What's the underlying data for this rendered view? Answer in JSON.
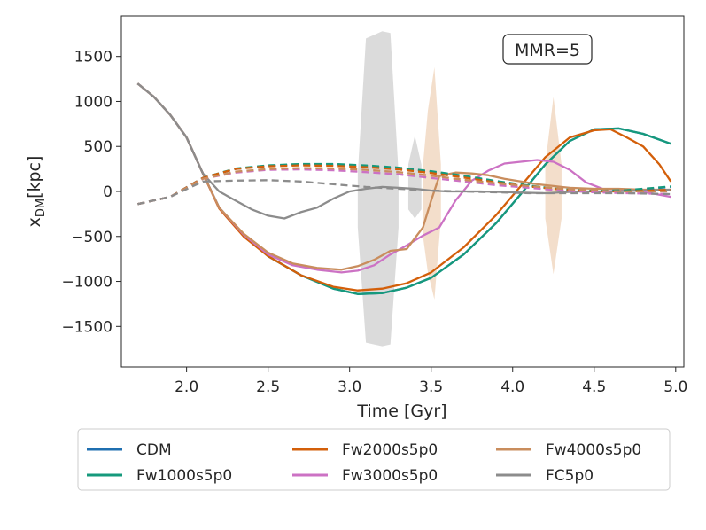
{
  "chart_data": {
    "type": "line",
    "title": "",
    "annotation": "MMR=5",
    "xlabel": "Time [Gyr]",
    "ylabel_main": "x",
    "ylabel_sub": "DM",
    "ylabel_tail": "[kpc]",
    "xlim": [
      1.6,
      5.05
    ],
    "ylim": [
      -1950,
      1950
    ],
    "xticks": [
      2.0,
      2.5,
      3.0,
      3.5,
      4.0,
      4.5,
      5.0
    ],
    "xtick_labels": [
      "2.0",
      "2.5",
      "3.0",
      "3.5",
      "4.0",
      "4.5",
      "5.0"
    ],
    "yticks": [
      -1500,
      -1000,
      -500,
      0,
      500,
      1000,
      1500
    ],
    "ytick_labels": [
      "−1500",
      "−1000",
      "−500",
      "0",
      "500",
      "1000",
      "1500"
    ],
    "legend_position": "below",
    "legend": [
      {
        "label": "CDM",
        "color": "#1f6fb0"
      },
      {
        "label": "Fw1000s5p0",
        "color": "#16997c"
      },
      {
        "label": "Fw2000s5p0",
        "color": "#d35f0a"
      },
      {
        "label": "Fw3000s5p0",
        "color": "#cc72c4"
      },
      {
        "label": "Fw4000s5p0",
        "color": "#c98d5d"
      },
      {
        "label": "FC5p0",
        "color": "#8c8c8c"
      }
    ],
    "series": [
      {
        "name": "CDM (primary)",
        "color": "#1f6fb0",
        "dash": false,
        "x": [
          1.7,
          1.8,
          1.9,
          2.0,
          2.1,
          2.2,
          2.35,
          2.5,
          2.7,
          2.9,
          3.05,
          3.2,
          3.35,
          3.5,
          3.7,
          3.9,
          4.05,
          4.2,
          4.35,
          4.5,
          4.65,
          4.8,
          4.97
        ],
        "y": [
          1200,
          1050,
          850,
          600,
          200,
          -180,
          -480,
          -720,
          -930,
          -1080,
          -1140,
          -1130,
          -1070,
          -960,
          -700,
          -350,
          -30,
          300,
          560,
          690,
          700,
          640,
          530
        ]
      },
      {
        "name": "Fw1000s5p0 (primary)",
        "color": "#16997c",
        "dash": false,
        "x": [
          1.7,
          1.8,
          1.9,
          2.0,
          2.1,
          2.2,
          2.35,
          2.5,
          2.7,
          2.9,
          3.05,
          3.2,
          3.35,
          3.5,
          3.7,
          3.9,
          4.05,
          4.2,
          4.35,
          4.5,
          4.65,
          4.8,
          4.97
        ],
        "y": [
          1200,
          1050,
          850,
          600,
          200,
          -180,
          -480,
          -720,
          -930,
          -1080,
          -1140,
          -1130,
          -1070,
          -960,
          -700,
          -350,
          -30,
          300,
          560,
          690,
          700,
          640,
          530
        ]
      },
      {
        "name": "Fw2000s5p0 (primary)",
        "color": "#d35f0a",
        "dash": false,
        "x": [
          1.7,
          1.8,
          1.9,
          2.0,
          2.1,
          2.2,
          2.35,
          2.5,
          2.7,
          2.9,
          3.05,
          3.2,
          3.35,
          3.5,
          3.7,
          3.9,
          4.05,
          4.2,
          4.35,
          4.5,
          4.6,
          4.7,
          4.8,
          4.9,
          4.97
        ],
        "y": [
          1200,
          1050,
          850,
          600,
          200,
          -190,
          -500,
          -720,
          -930,
          -1060,
          -1100,
          -1080,
          -1020,
          -900,
          -620,
          -260,
          60,
          380,
          600,
          680,
          690,
          600,
          500,
          300,
          110
        ]
      },
      {
        "name": "Fw3000s5p0 (primary)",
        "color": "#cc72c4",
        "dash": false,
        "x": [
          1.7,
          1.8,
          1.9,
          2.0,
          2.1,
          2.2,
          2.35,
          2.5,
          2.65,
          2.8,
          2.95,
          3.05,
          3.15,
          3.25,
          3.35,
          3.45,
          3.55,
          3.65,
          3.75,
          3.85,
          3.95,
          4.05,
          4.15,
          4.25,
          4.35,
          4.45,
          4.55,
          4.7,
          4.85,
          4.97
        ],
        "y": [
          1200,
          1050,
          850,
          600,
          200,
          -180,
          -480,
          -700,
          -820,
          -870,
          -900,
          -880,
          -820,
          -700,
          -600,
          -490,
          -400,
          -100,
          120,
          230,
          310,
          330,
          350,
          330,
          240,
          100,
          30,
          20,
          -20,
          -60
        ]
      },
      {
        "name": "Fw4000s5p0 (primary)",
        "color": "#c98d5d",
        "dash": false,
        "x": [
          1.7,
          1.8,
          1.9,
          2.0,
          2.1,
          2.2,
          2.35,
          2.5,
          2.65,
          2.8,
          2.95,
          3.05,
          3.15,
          3.25,
          3.35,
          3.45,
          3.5,
          3.55,
          3.65,
          3.75,
          3.85,
          3.95,
          4.05,
          4.15,
          4.25,
          4.35,
          4.5,
          4.65,
          4.8,
          4.97
        ],
        "y": [
          1200,
          1050,
          850,
          600,
          200,
          -180,
          -470,
          -680,
          -800,
          -850,
          -870,
          -830,
          -760,
          -660,
          -640,
          -400,
          -100,
          170,
          210,
          200,
          180,
          140,
          110,
          80,
          60,
          40,
          30,
          30,
          20,
          20
        ]
      },
      {
        "name": "FC5p0 (primary)",
        "color": "#8c8c8c",
        "dash": false,
        "x": [
          1.7,
          1.8,
          1.9,
          2.0,
          2.1,
          2.2,
          2.3,
          2.4,
          2.5,
          2.6,
          2.7,
          2.8,
          2.9,
          3.0,
          3.1,
          3.2,
          3.3,
          3.4,
          3.5,
          3.6,
          3.8,
          4.0,
          4.2,
          4.4,
          4.6,
          4.8,
          4.97
        ],
        "y": [
          1200,
          1050,
          850,
          600,
          200,
          0,
          -100,
          -200,
          -270,
          -300,
          -230,
          -180,
          -80,
          0,
          30,
          50,
          40,
          30,
          10,
          0,
          0,
          -10,
          -20,
          0,
          0,
          10,
          20
        ]
      },
      {
        "name": "CDM (secondary)",
        "color": "#1f6fb0",
        "dash": true,
        "x": [
          1.7,
          1.9,
          2.1,
          2.3,
          2.5,
          2.7,
          2.9,
          3.1,
          3.3,
          3.5,
          3.7,
          3.9,
          4.1,
          4.3,
          4.5,
          4.7,
          4.97
        ],
        "y": [
          -140,
          -60,
          150,
          250,
          285,
          300,
          300,
          285,
          260,
          220,
          170,
          110,
          60,
          20,
          0,
          10,
          50
        ]
      },
      {
        "name": "Fw1000s5p0 (secondary)",
        "color": "#16997c",
        "dash": true,
        "x": [
          1.7,
          1.9,
          2.1,
          2.3,
          2.5,
          2.7,
          2.9,
          3.1,
          3.3,
          3.5,
          3.7,
          3.9,
          4.1,
          4.3,
          4.5,
          4.7,
          4.97
        ],
        "y": [
          -140,
          -60,
          150,
          255,
          290,
          305,
          305,
          290,
          265,
          225,
          175,
          115,
          65,
          25,
          5,
          15,
          55
        ]
      },
      {
        "name": "Fw2000s5p0 (secondary)",
        "color": "#d35f0a",
        "dash": true,
        "x": [
          1.7,
          1.9,
          2.1,
          2.3,
          2.5,
          2.7,
          2.9,
          3.1,
          3.3,
          3.5,
          3.7,
          3.9,
          4.1,
          4.3,
          4.5,
          4.7,
          4.97
        ],
        "y": [
          -140,
          -60,
          150,
          250,
          280,
          290,
          285,
          270,
          245,
          205,
          155,
          100,
          55,
          20,
          0,
          0,
          20
        ]
      },
      {
        "name": "Fw3000s5p0 (secondary)",
        "color": "#cc72c4",
        "dash": true,
        "x": [
          1.7,
          1.9,
          2.1,
          2.3,
          2.5,
          2.7,
          2.9,
          3.1,
          3.3,
          3.5,
          3.7,
          3.9,
          4.1,
          4.3,
          4.5,
          4.7,
          4.97
        ],
        "y": [
          -140,
          -60,
          140,
          210,
          240,
          245,
          235,
          215,
          190,
          150,
          110,
          70,
          40,
          10,
          -10,
          -20,
          -30
        ]
      },
      {
        "name": "Fw4000s5p0 (secondary)",
        "color": "#c98d5d",
        "dash": true,
        "x": [
          1.7,
          1.9,
          2.1,
          2.3,
          2.5,
          2.7,
          2.9,
          3.1,
          3.3,
          3.5,
          3.7,
          3.9,
          4.1,
          4.3,
          4.5,
          4.7,
          4.97
        ],
        "y": [
          -140,
          -60,
          140,
          220,
          250,
          260,
          255,
          240,
          215,
          175,
          130,
          90,
          60,
          30,
          10,
          0,
          0
        ]
      },
      {
        "name": "FC5p0 (secondary)",
        "color": "#8c8c8c",
        "dash": true,
        "x": [
          1.7,
          1.9,
          2.1,
          2.3,
          2.5,
          2.7,
          2.9,
          3.1,
          3.3,
          3.5,
          3.7,
          3.9,
          4.1,
          4.3,
          4.5,
          4.7,
          4.97
        ],
        "y": [
          -140,
          -60,
          110,
          120,
          125,
          110,
          80,
          50,
          30,
          10,
          0,
          -10,
          -20,
          -20,
          -20,
          -20,
          -30
        ]
      }
    ],
    "bands": [
      {
        "name": "FC5p0 scatter",
        "color": "#bdbdbd",
        "x": [
          3.05,
          3.1,
          3.15,
          3.2,
          3.25,
          3.3
        ],
        "lo": [
          -400,
          -1680,
          -1700,
          -1720,
          -1700,
          -400
        ],
        "hi": [
          200,
          1700,
          1740,
          1780,
          1760,
          200
        ]
      },
      {
        "name": "FC5p0 scatter 2",
        "color": "#bdbdbd",
        "x": [
          3.36,
          3.4,
          3.44
        ],
        "lo": [
          -200,
          -300,
          -200
        ],
        "hi": [
          300,
          620,
          300
        ]
      },
      {
        "name": "Fw4000s5p0 scatter",
        "color": "#e9c3a0",
        "x": [
          3.45,
          3.48,
          3.52,
          3.56
        ],
        "lo": [
          -500,
          -900,
          -1200,
          -300
        ],
        "hi": [
          300,
          900,
          1380,
          300
        ]
      },
      {
        "name": "Fw4000s5p0 scatter 2",
        "color": "#e9c3a0",
        "x": [
          4.2,
          4.25,
          4.3
        ],
        "lo": [
          -300,
          -920,
          -300
        ],
        "hi": [
          300,
          1050,
          300
        ]
      }
    ]
  }
}
